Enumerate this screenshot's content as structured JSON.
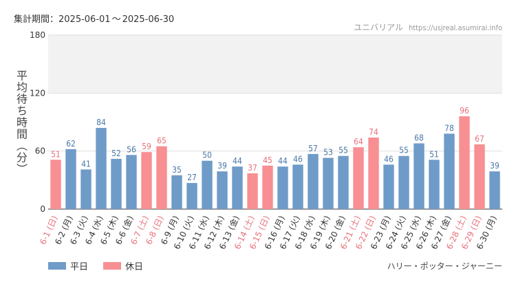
{
  "period": {
    "label": "集計期間：",
    "start": "2025-06-01",
    "sep": "～",
    "end": "2025-06-30"
  },
  "source": {
    "name": "ユニバリアル",
    "url": "https://usjreal.asumirai.info"
  },
  "attraction": "ハリー・ポッター・ジャーニー",
  "colors": {
    "weekday": "#6f9bc8",
    "holiday": "#f88f93",
    "weekday_text": "#4a78a8",
    "holiday_text": "#e8727a",
    "band": "#f2f2f2",
    "grid": "#dddddd"
  },
  "chart_data": {
    "type": "bar",
    "ylabel": "平均待ち時間（分）",
    "ylim": [
      0,
      180
    ],
    "yticks": [
      0,
      60,
      120,
      180
    ],
    "band": [
      120,
      180
    ],
    "grid": true,
    "legend_position": "bottom-left",
    "categories": [
      "6-1 (日)",
      "6-2 (月)",
      "6-3 (火)",
      "6-4 (水)",
      "6-5 (木)",
      "6-6 (金)",
      "6-7 (土)",
      "6-8 (日)",
      "6-9 (月)",
      "6-10 (火)",
      "6-11 (水)",
      "6-12 (木)",
      "6-13 (金)",
      "6-14 (土)",
      "6-15 (日)",
      "6-16 (月)",
      "6-17 (火)",
      "6-18 (水)",
      "6-19 (木)",
      "6-20 (金)",
      "6-21 (土)",
      "6-22 (日)",
      "6-23 (月)",
      "6-24 (火)",
      "6-25 (水)",
      "6-26 (木)",
      "6-27 (金)",
      "6-28 (土)",
      "6-29 (日)",
      "6-30 (月)"
    ],
    "values": [
      51,
      62,
      41,
      84,
      52,
      56,
      59,
      65,
      35,
      27,
      50,
      39,
      44,
      37,
      45,
      44,
      46,
      57,
      53,
      55,
      64,
      74,
      46,
      55,
      68,
      51,
      78,
      96,
      67,
      39
    ],
    "holiday": [
      true,
      false,
      false,
      false,
      false,
      false,
      true,
      true,
      false,
      false,
      false,
      false,
      false,
      true,
      true,
      false,
      false,
      false,
      false,
      false,
      true,
      true,
      false,
      false,
      false,
      false,
      false,
      true,
      true,
      false
    ],
    "series": [
      {
        "name": "平日"
      },
      {
        "name": "休日"
      }
    ]
  }
}
